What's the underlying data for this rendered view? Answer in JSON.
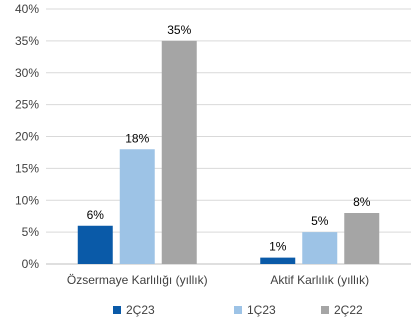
{
  "chart_data": {
    "type": "bar",
    "title": "",
    "xlabel": "",
    "ylabel": "",
    "categories": [
      "Özsermaye Karlılığı (yıllık)",
      "Aktif Karlılık (yıllık)"
    ],
    "series": [
      {
        "name": "2Ç23",
        "values": [
          6,
          1
        ],
        "labels": [
          "6%",
          "1%"
        ],
        "color": "#0a5aa8"
      },
      {
        "name": "1Ç23",
        "values": [
          18,
          5
        ],
        "labels": [
          "18%",
          "5%"
        ],
        "color": "#9dc3e6"
      },
      {
        "name": "2Ç22",
        "values": [
          35,
          8
        ],
        "labels": [
          "35%",
          "8%"
        ],
        "color": "#a5a5a5"
      }
    ],
    "ylim": [
      0,
      40
    ],
    "yticks": [
      "0%",
      "5%",
      "10%",
      "15%",
      "20%",
      "25%",
      "30%",
      "35%",
      "40%"
    ],
    "grid": true,
    "legend": "bottom"
  }
}
